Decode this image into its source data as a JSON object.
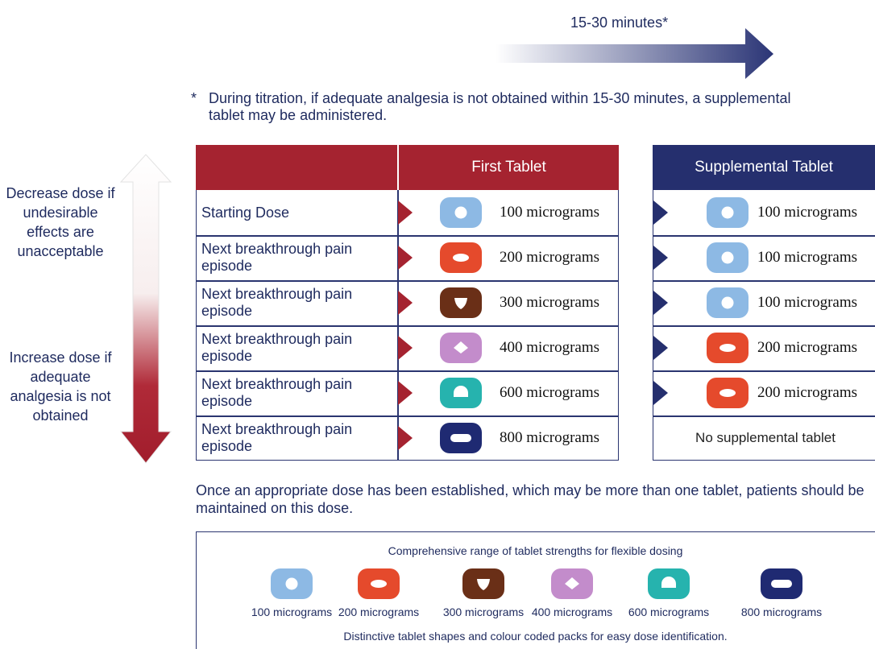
{
  "timing": {
    "label": "15-30 minutes*"
  },
  "footnote": {
    "marker": "*",
    "text": "During titration, if adequate analgesia is not obtained within 15-30 minutes, a supplemental tablet may be administered."
  },
  "side_arrow": {
    "decrease": "Decrease dose if undesirable effects are unacceptable",
    "increase": "Increase dose if adequate analgesia is not obtained"
  },
  "table": {
    "header": "First Tablet",
    "supplemental_header": "Supplemental Tablet",
    "rows": [
      {
        "step": "Starting Dose",
        "first": "100 micrograms",
        "supplemental": "100 micrograms"
      },
      {
        "step": "Next breakthrough pain episode",
        "first": "200 micrograms",
        "supplemental": "100 micrograms"
      },
      {
        "step": "Next breakthrough pain episode",
        "first": "300 micrograms",
        "supplemental": "100 micrograms"
      },
      {
        "step": "Next breakthrough pain episode",
        "first": "400 micrograms",
        "supplemental": "200 micrograms"
      },
      {
        "step": "Next breakthrough pain episode",
        "first": "600 micrograms",
        "supplemental": "200 micrograms"
      },
      {
        "step": "Next breakthrough pain episode",
        "first": "800 micrograms",
        "supplemental": "No supplemental tablet"
      }
    ]
  },
  "maintenance": "Once an appropriate dose has been established, which may be more than one tablet, patients should be maintained on this dose.",
  "range": {
    "title": "Comprehensive range of tablet strengths for flexible dosing",
    "tablets": [
      {
        "label": "100 micrograms",
        "color": "#8db9e4"
      },
      {
        "label": "200 micrograms",
        "color": "#e54a2c"
      },
      {
        "label": "300 micrograms",
        "color": "#6a2f17"
      },
      {
        "label": "400 micrograms",
        "color": "#c38ccb"
      },
      {
        "label": "600 micrograms",
        "color": "#26b3ae"
      },
      {
        "label": "800 micrograms",
        "color": "#1f2a72"
      }
    ],
    "footer": "Distinctive tablet shapes and colour coded packs for easy dose identification."
  }
}
